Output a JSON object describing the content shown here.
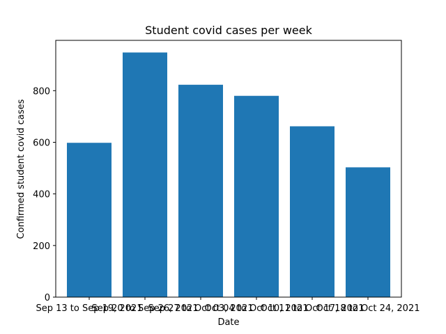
{
  "chart_data": {
    "type": "bar",
    "title": "Student covid cases per week",
    "xlabel": "Date",
    "ylabel": "Confirmed student covid cases",
    "categories": [
      "Sep 13 to Sep 19, 2021",
      "Sep 20 to Sep 26, 2021",
      "Sep 27 to Oct 03, 2021",
      "Oct 04 to Oct 10, 2021",
      "Oct 11 to Oct 17, 2021",
      "Oct 18 to Oct 24, 2021"
    ],
    "values": [
      598,
      948,
      823,
      780,
      662,
      503
    ],
    "ylim": [
      0,
      995
    ],
    "yticks": [
      "0",
      "200",
      "400",
      "600",
      "800"
    ],
    "bar_color": "#1f77b4",
    "grid": false,
    "legend": "none"
  }
}
